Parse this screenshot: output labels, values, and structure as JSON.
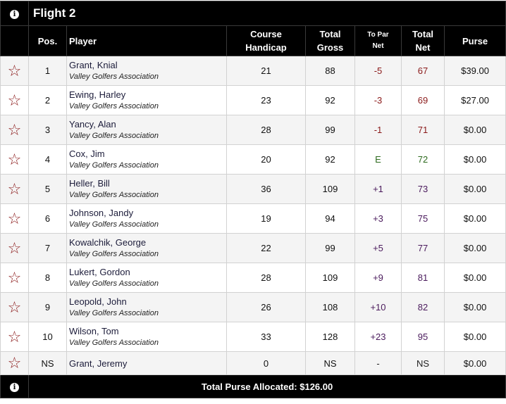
{
  "flight_title": "Flight 2",
  "headers": {
    "pos": "Pos.",
    "player": "Player",
    "course_handicap": [
      "Course",
      "Handicap"
    ],
    "total_gross": [
      "Total",
      "Gross"
    ],
    "to_par_net": [
      "To Par",
      "Net"
    ],
    "total_net": [
      "Total",
      "Net"
    ],
    "purse": "Purse"
  },
  "rows": [
    {
      "pos": "1",
      "name": "Grant, Knial",
      "assoc": "Valley Golfers Association",
      "hcp": "21",
      "gross": "88",
      "topar": "-5",
      "net": "67",
      "purse": "$39.00",
      "topar_color": "#8b1a1a",
      "net_color": "#8b1a1a"
    },
    {
      "pos": "2",
      "name": "Ewing, Harley",
      "assoc": "Valley Golfers Association",
      "hcp": "23",
      "gross": "92",
      "topar": "-3",
      "net": "69",
      "purse": "$27.00",
      "topar_color": "#8b1a1a",
      "net_color": "#8b1a1a"
    },
    {
      "pos": "3",
      "name": "Yancy, Alan",
      "assoc": "Valley Golfers Association",
      "hcp": "28",
      "gross": "99",
      "topar": "-1",
      "net": "71",
      "purse": "$0.00",
      "topar_color": "#8b1a1a",
      "net_color": "#8b1a1a"
    },
    {
      "pos": "4",
      "name": "Cox, Jim",
      "assoc": "Valley Golfers Association",
      "hcp": "20",
      "gross": "92",
      "topar": "E",
      "net": "72",
      "purse": "$0.00",
      "topar_color": "#2e6b1f",
      "net_color": "#2e6b1f"
    },
    {
      "pos": "5",
      "name": "Heller, Bill",
      "assoc": "Valley Golfers Association",
      "hcp": "36",
      "gross": "109",
      "topar": "+1",
      "net": "73",
      "purse": "$0.00",
      "topar_color": "#4a1a5c",
      "net_color": "#4a1a5c"
    },
    {
      "pos": "6",
      "name": "Johnson, Jandy",
      "assoc": "Valley Golfers Association",
      "hcp": "19",
      "gross": "94",
      "topar": "+3",
      "net": "75",
      "purse": "$0.00",
      "topar_color": "#4a1a5c",
      "net_color": "#4a1a5c"
    },
    {
      "pos": "7",
      "name": "Kowalchik, George",
      "assoc": "Valley Golfers Association",
      "hcp": "22",
      "gross": "99",
      "topar": "+5",
      "net": "77",
      "purse": "$0.00",
      "topar_color": "#4a1a5c",
      "net_color": "#4a1a5c"
    },
    {
      "pos": "8",
      "name": "Lukert, Gordon",
      "assoc": "Valley Golfers Association",
      "hcp": "28",
      "gross": "109",
      "topar": "+9",
      "net": "81",
      "purse": "$0.00",
      "topar_color": "#4a1a5c",
      "net_color": "#4a1a5c"
    },
    {
      "pos": "9",
      "name": "Leopold, John",
      "assoc": "Valley Golfers Association",
      "hcp": "26",
      "gross": "108",
      "topar": "+10",
      "net": "82",
      "purse": "$0.00",
      "topar_color": "#4a1a5c",
      "net_color": "#4a1a5c"
    },
    {
      "pos": "10",
      "name": "Wilson, Tom",
      "assoc": "Valley Golfers Association",
      "hcp": "33",
      "gross": "128",
      "topar": "+23",
      "net": "95",
      "purse": "$0.00",
      "topar_color": "#4a1a5c",
      "net_color": "#4a1a5c"
    },
    {
      "pos": "NS",
      "name": "Grant, Jeremy",
      "assoc": "",
      "hcp": "0",
      "gross": "NS",
      "topar": "-",
      "net": "NS",
      "purse": "$0.00",
      "topar_color": "#222222",
      "net_color": "#222222"
    }
  ],
  "footer": {
    "total_purse": "Total Purse Allocated: $126.00"
  },
  "icons": {
    "info": "info-icon",
    "favorite": "star-outline-icon"
  },
  "colors": {
    "header_bg": "#000000",
    "star": "#8b1a1a",
    "under_par": "#8b1a1a",
    "even_par": "#2e6b1f",
    "over_par": "#4a1a5c"
  }
}
